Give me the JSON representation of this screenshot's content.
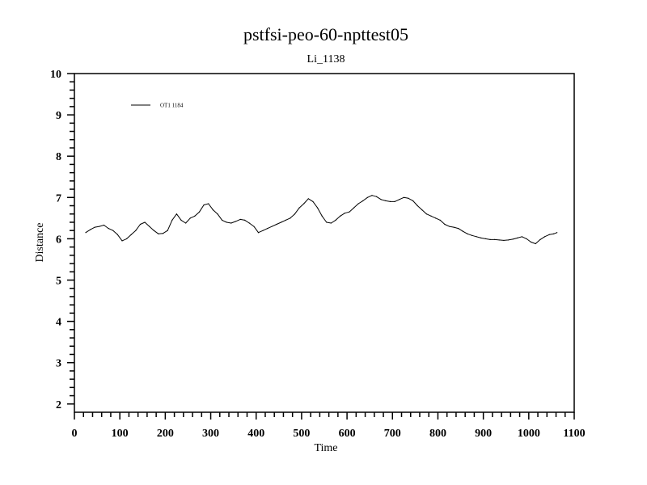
{
  "chart_data": {
    "type": "line",
    "title": "pstfsi-peo-60-npttest05",
    "subtitle": "Li_1138",
    "xlabel": "Time",
    "ylabel": "Distance",
    "xlim": [
      0,
      1100
    ],
    "ylim": [
      1.8,
      10
    ],
    "xticks": [
      0,
      100,
      200,
      300,
      400,
      500,
      600,
      700,
      800,
      900,
      1000,
      1100
    ],
    "yticks": [
      2,
      3,
      4,
      5,
      6,
      7,
      8,
      9,
      10
    ],
    "grid": false,
    "legend_position": "top-left",
    "series": [
      {
        "name": "OT1 1184",
        "color": "#000000",
        "x": [
          25,
          35,
          45,
          55,
          65,
          75,
          85,
          95,
          105,
          115,
          125,
          135,
          145,
          155,
          165,
          175,
          185,
          195,
          205,
          215,
          225,
          235,
          245,
          255,
          265,
          275,
          285,
          295,
          305,
          315,
          325,
          335,
          345,
          355,
          365,
          375,
          385,
          395,
          405,
          415,
          425,
          435,
          445,
          455,
          465,
          475,
          485,
          495,
          505,
          515,
          525,
          535,
          545,
          555,
          565,
          575,
          585,
          595,
          605,
          615,
          625,
          635,
          645,
          655,
          665,
          675,
          685,
          695,
          705,
          715,
          725,
          735,
          745,
          755,
          765,
          775,
          785,
          795,
          805,
          815,
          825,
          835,
          845,
          855,
          865,
          875,
          885,
          895,
          905,
          915,
          925,
          935,
          945,
          955,
          965,
          975,
          985,
          995,
          1005,
          1015,
          1025,
          1035,
          1045,
          1055,
          1062
        ],
        "y": [
          6.15,
          6.22,
          6.28,
          6.3,
          6.33,
          6.25,
          6.2,
          6.1,
          5.95,
          6.0,
          6.1,
          6.2,
          6.35,
          6.4,
          6.3,
          6.2,
          6.12,
          6.13,
          6.2,
          6.45,
          6.6,
          6.45,
          6.38,
          6.5,
          6.55,
          6.65,
          6.82,
          6.85,
          6.7,
          6.6,
          6.45,
          6.4,
          6.38,
          6.42,
          6.47,
          6.45,
          6.38,
          6.3,
          6.15,
          6.2,
          6.25,
          6.3,
          6.35,
          6.4,
          6.45,
          6.5,
          6.6,
          6.75,
          6.85,
          6.97,
          6.9,
          6.75,
          6.55,
          6.4,
          6.38,
          6.45,
          6.55,
          6.62,
          6.65,
          6.75,
          6.85,
          6.92,
          7.0,
          7.05,
          7.02,
          6.95,
          6.92,
          6.9,
          6.9,
          6.95,
          7.0,
          6.98,
          6.92,
          6.8,
          6.7,
          6.6,
          6.55,
          6.5,
          6.45,
          6.35,
          6.3,
          6.28,
          6.25,
          6.18,
          6.12,
          6.08,
          6.05,
          6.02,
          6.0,
          5.98,
          5.98,
          5.97,
          5.96,
          5.97,
          5.99,
          6.02,
          6.05,
          6.0,
          5.92,
          5.88,
          5.98,
          6.05,
          6.1,
          6.12,
          6.15
        ]
      }
    ]
  }
}
